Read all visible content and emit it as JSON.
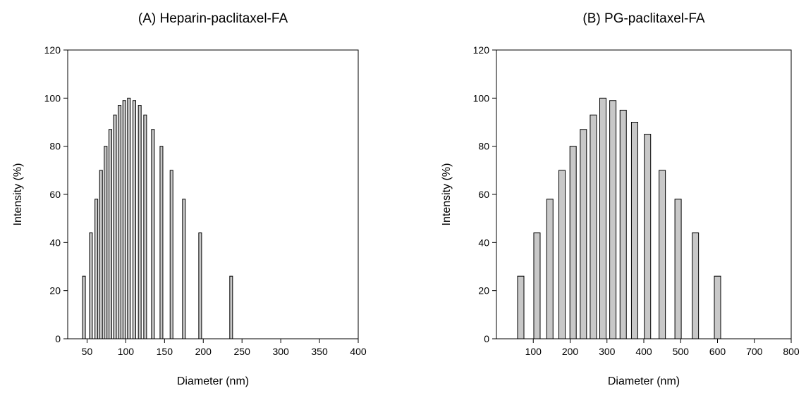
{
  "chart_data": [
    {
      "type": "bar",
      "title": "(A) Heparin-paclitaxel-FA",
      "xlabel": "Diameter (nm)",
      "ylabel": "Intensity (%)",
      "xlim": [
        25,
        400
      ],
      "ylim": [
        0,
        120
      ],
      "xticks": [
        50,
        100,
        150,
        200,
        250,
        300,
        350,
        400
      ],
      "yticks": [
        0,
        20,
        40,
        60,
        80,
        100,
        120
      ],
      "bar_color": "#c8c8c8",
      "x": [
        46,
        55,
        62,
        68,
        74,
        80,
        86,
        92,
        98,
        104,
        111,
        118,
        125,
        135,
        146,
        159,
        175,
        196,
        236
      ],
      "values": [
        26,
        44,
        58,
        70,
        80,
        87,
        93,
        97,
        99,
        100,
        99,
        97,
        93,
        87,
        80,
        70,
        58,
        44,
        26
      ]
    },
    {
      "type": "bar",
      "title": "(B) PG-paclitaxel-FA",
      "xlabel": "Diameter (nm)",
      "ylabel": "Intensity (%)",
      "xlim": [
        0,
        800
      ],
      "ylim": [
        0,
        120
      ],
      "xticks": [
        100,
        200,
        300,
        400,
        500,
        600,
        700,
        800
      ],
      "yticks": [
        0,
        20,
        40,
        60,
        80,
        100,
        120
      ],
      "bar_color": "#c8c8c8",
      "x": [
        66,
        110,
        145,
        178,
        208,
        236,
        263,
        289,
        316,
        344,
        375,
        410,
        450,
        493,
        540,
        600
      ],
      "values": [
        26,
        44,
        58,
        70,
        80,
        87,
        93,
        100,
        99,
        95,
        90,
        85,
        70,
        58,
        44,
        26
      ]
    }
  ]
}
